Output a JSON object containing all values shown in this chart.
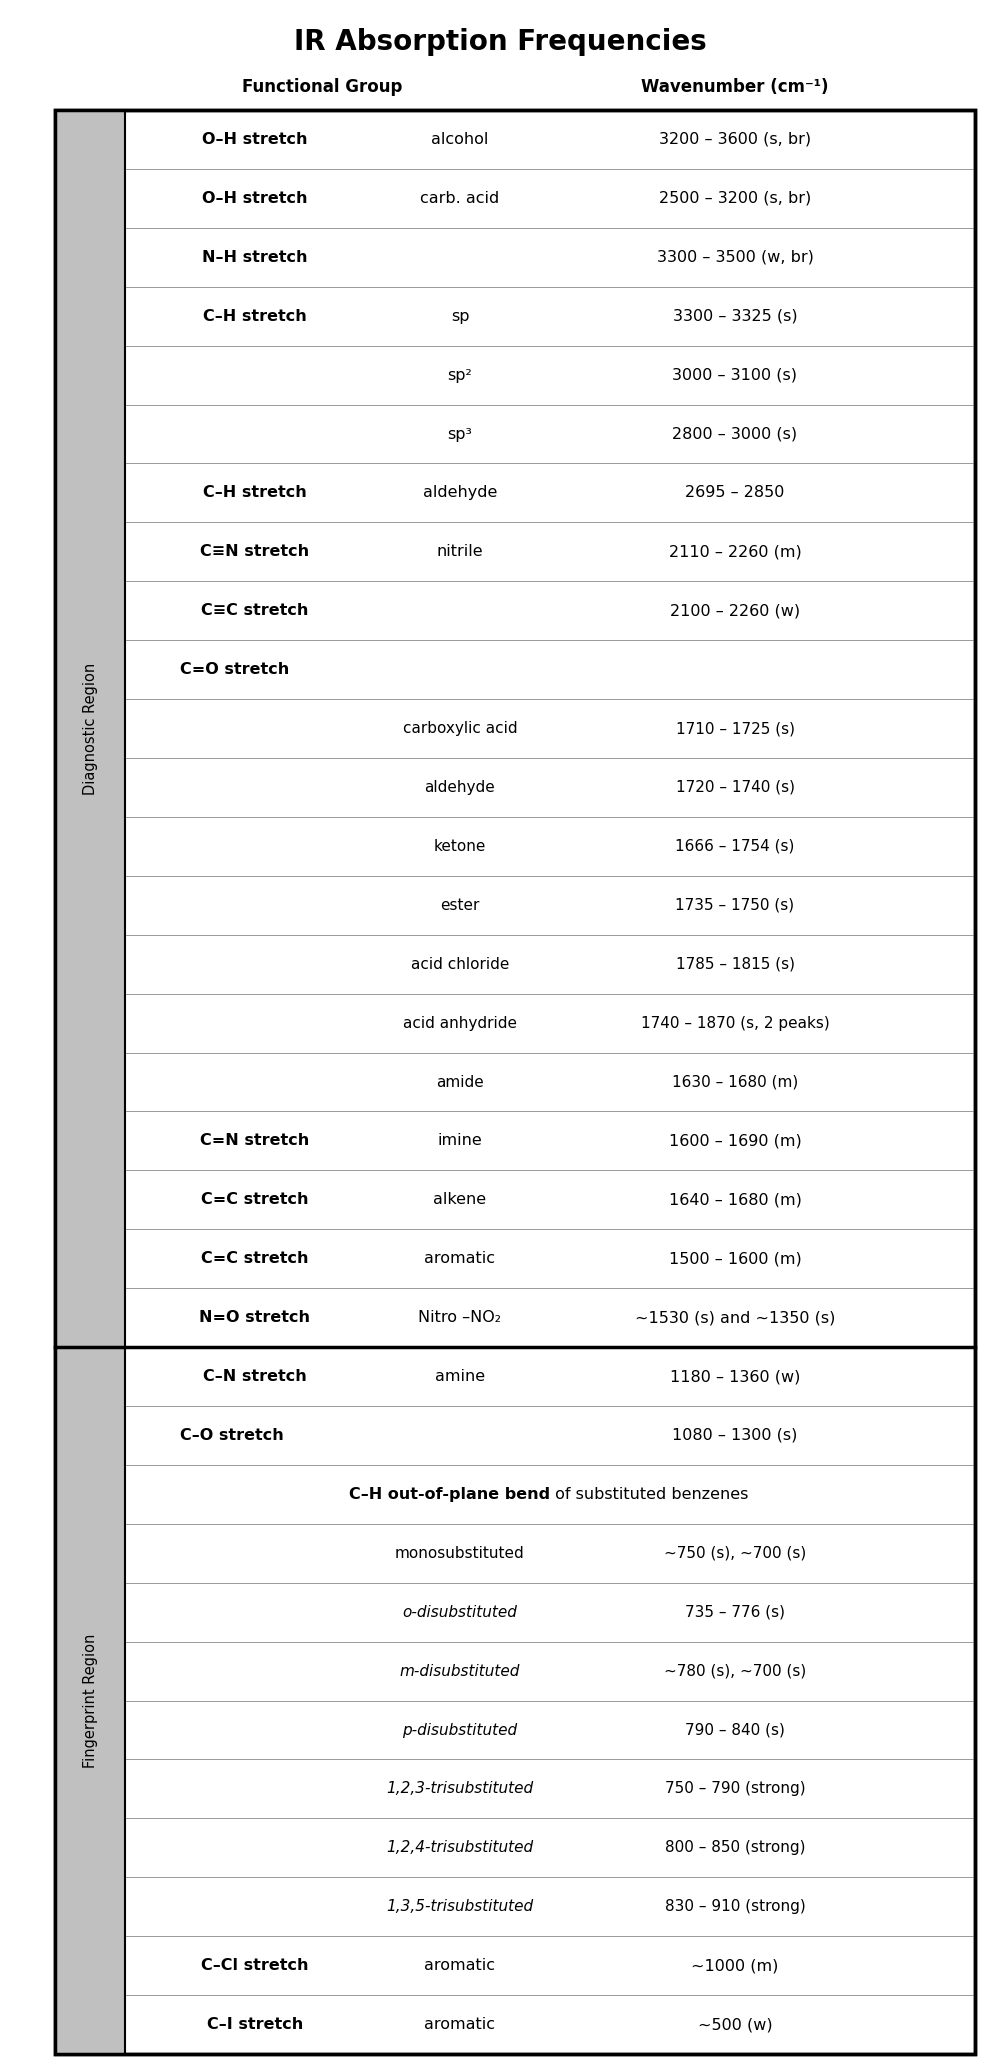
{
  "title": "IR Absorption Frequencies",
  "col_header_fg": "Functional Group",
  "col_header_wn": "Wavenumber (cm⁻¹)",
  "background": "#ffffff",
  "rows": [
    {
      "col1": "O–H stretch",
      "col1_bold": true,
      "col2": "alcohol",
      "col2_italic": false,
      "col3": "3200 – 3600 (s, br)",
      "section": "diagnostic",
      "row_type": "normal"
    },
    {
      "col1": "O–H stretch",
      "col1_bold": true,
      "col2": "carb. acid",
      "col2_italic": false,
      "col3": "2500 – 3200 (s, br)",
      "section": "diagnostic",
      "row_type": "normal"
    },
    {
      "col1": "N–H stretch",
      "col1_bold": true,
      "col2": "",
      "col2_italic": false,
      "col3": "3300 – 3500 (w, br)",
      "section": "diagnostic",
      "row_type": "normal"
    },
    {
      "col1": "C–H stretch",
      "col1_bold": true,
      "col2": "sp",
      "col2_italic": false,
      "col3": "3300 – 3325 (s)",
      "section": "diagnostic",
      "row_type": "normal"
    },
    {
      "col1": "",
      "col1_bold": false,
      "col2": "sp²",
      "col2_italic": false,
      "col3": "3000 – 3100 (s)",
      "section": "diagnostic",
      "row_type": "normal"
    },
    {
      "col1": "",
      "col1_bold": false,
      "col2": "sp³",
      "col2_italic": false,
      "col3": "2800 – 3000 (s)",
      "section": "diagnostic",
      "row_type": "normal"
    },
    {
      "col1": "C–H stretch",
      "col1_bold": true,
      "col2": "aldehyde",
      "col2_italic": false,
      "col3": "2695 – 2850",
      "section": "diagnostic",
      "row_type": "normal"
    },
    {
      "col1": "C≡N stretch",
      "col1_bold": true,
      "col2": "nitrile",
      "col2_italic": false,
      "col3": "2110 – 2260 (m)",
      "section": "diagnostic",
      "row_type": "normal"
    },
    {
      "col1": "C≡C stretch",
      "col1_bold": true,
      "col2": "",
      "col2_italic": false,
      "col3": "2100 – 2260 (w)",
      "section": "diagnostic",
      "row_type": "normal"
    },
    {
      "col1": "C=O stretch",
      "col1_bold": true,
      "col2": "",
      "col2_italic": false,
      "col3": "",
      "section": "diagnostic",
      "row_type": "header_co"
    },
    {
      "col1": "",
      "col1_bold": false,
      "col2": "carboxylic acid",
      "col2_italic": false,
      "col3": "1710 – 1725 (s)",
      "section": "diagnostic",
      "row_type": "co_sub"
    },
    {
      "col1": "",
      "col1_bold": false,
      "col2": "aldehyde",
      "col2_italic": false,
      "col3": "1720 – 1740 (s)",
      "section": "diagnostic",
      "row_type": "co_sub"
    },
    {
      "col1": "",
      "col1_bold": false,
      "col2": "ketone",
      "col2_italic": false,
      "col3": "1666 – 1754 (s)",
      "section": "diagnostic",
      "row_type": "co_sub"
    },
    {
      "col1": "",
      "col1_bold": false,
      "col2": "ester",
      "col2_italic": false,
      "col3": "1735 – 1750 (s)",
      "section": "diagnostic",
      "row_type": "co_sub"
    },
    {
      "col1": "",
      "col1_bold": false,
      "col2": "acid chloride",
      "col2_italic": false,
      "col3": "1785 – 1815 (s)",
      "section": "diagnostic",
      "row_type": "co_sub"
    },
    {
      "col1": "",
      "col1_bold": false,
      "col2": "acid anhydride",
      "col2_italic": false,
      "col3": "1740 – 1870 (s, 2 peaks)",
      "section": "diagnostic",
      "row_type": "co_sub"
    },
    {
      "col1": "",
      "col1_bold": false,
      "col2": "amide",
      "col2_italic": false,
      "col3": "1630 – 1680 (m)",
      "section": "diagnostic",
      "row_type": "co_sub"
    },
    {
      "col1": "C=N stretch",
      "col1_bold": true,
      "col2": "imine",
      "col2_italic": false,
      "col3": "1600 – 1690 (m)",
      "section": "diagnostic",
      "row_type": "normal"
    },
    {
      "col1": "C=C stretch",
      "col1_bold": true,
      "col2": "alkene",
      "col2_italic": false,
      "col3": "1640 – 1680 (m)",
      "section": "diagnostic",
      "row_type": "normal"
    },
    {
      "col1": "C=C stretch",
      "col1_bold": true,
      "col2": "aromatic",
      "col2_italic": false,
      "col3": "1500 – 1600 (m)",
      "section": "diagnostic",
      "row_type": "normal"
    },
    {
      "col1": "N=O stretch",
      "col1_bold": true,
      "col2": "Nitro –NO₂",
      "col2_italic": false,
      "col3": "~1530 (s) and ~1350 (s)",
      "section": "diagnostic",
      "row_type": "normal"
    },
    {
      "col1": "C–N stretch",
      "col1_bold": true,
      "col2": "amine",
      "col2_italic": false,
      "col3": "1180 – 1360 (w)",
      "section": "fingerprint",
      "row_type": "normal"
    },
    {
      "col1": "C–O stretch",
      "col1_bold": true,
      "col2": "",
      "col2_italic": false,
      "col3": "1080 – 1300 (s)",
      "section": "fingerprint",
      "row_type": "co_header"
    },
    {
      "col1": "C–H out-of-plane bend",
      "col1_bold": true,
      "col2": "of substituted benzenes",
      "col2_italic": false,
      "col3": "",
      "section": "fingerprint",
      "row_type": "header_ch"
    },
    {
      "col1": "",
      "col1_bold": false,
      "col2": "monosubstituted",
      "col2_italic": false,
      "col3": "~750 (s), ~700 (s)",
      "section": "fingerprint",
      "row_type": "ch_sub"
    },
    {
      "col1": "",
      "col1_bold": false,
      "col2": "o-disubstituted",
      "col2_italic": true,
      "col3": "735 – 776 (s)",
      "section": "fingerprint",
      "row_type": "ch_sub"
    },
    {
      "col1": "",
      "col1_bold": false,
      "col2": "m-disubstituted",
      "col2_italic": true,
      "col3": "~780 (s), ~700 (s)",
      "section": "fingerprint",
      "row_type": "ch_sub"
    },
    {
      "col1": "",
      "col1_bold": false,
      "col2": "p-disubstituted",
      "col2_italic": true,
      "col3": "790 – 840 (s)",
      "section": "fingerprint",
      "row_type": "ch_sub"
    },
    {
      "col1": "",
      "col1_bold": false,
      "col2": "1,2,3-trisubstituted",
      "col2_italic": true,
      "col3": "750 – 790 (strong)",
      "section": "fingerprint",
      "row_type": "ch_sub"
    },
    {
      "col1": "",
      "col1_bold": false,
      "col2": "1,2,4-trisubstituted",
      "col2_italic": true,
      "col3": "800 – 850 (strong)",
      "section": "fingerprint",
      "row_type": "ch_sub"
    },
    {
      "col1": "",
      "col1_bold": false,
      "col2": "1,3,5-trisubstituted",
      "col2_italic": true,
      "col3": "830 – 910 (strong)",
      "section": "fingerprint",
      "row_type": "ch_sub"
    },
    {
      "col1": "C–Cl stretch",
      "col1_bold": true,
      "col2": "aromatic",
      "col2_italic": false,
      "col3": "~1000 (m)",
      "section": "fingerprint",
      "row_type": "normal"
    },
    {
      "col1": "C–I stretch",
      "col1_bold": true,
      "col2": "aromatic",
      "col2_italic": false,
      "col3": "~500 (w)",
      "section": "fingerprint",
      "row_type": "normal"
    }
  ],
  "diagnostic_label": "Diagnostic Region",
  "fingerprint_label": "Fingerprint Region",
  "label_bg": "#c0c0c0",
  "separator_color": "#999999",
  "section_div_color": "#000000"
}
